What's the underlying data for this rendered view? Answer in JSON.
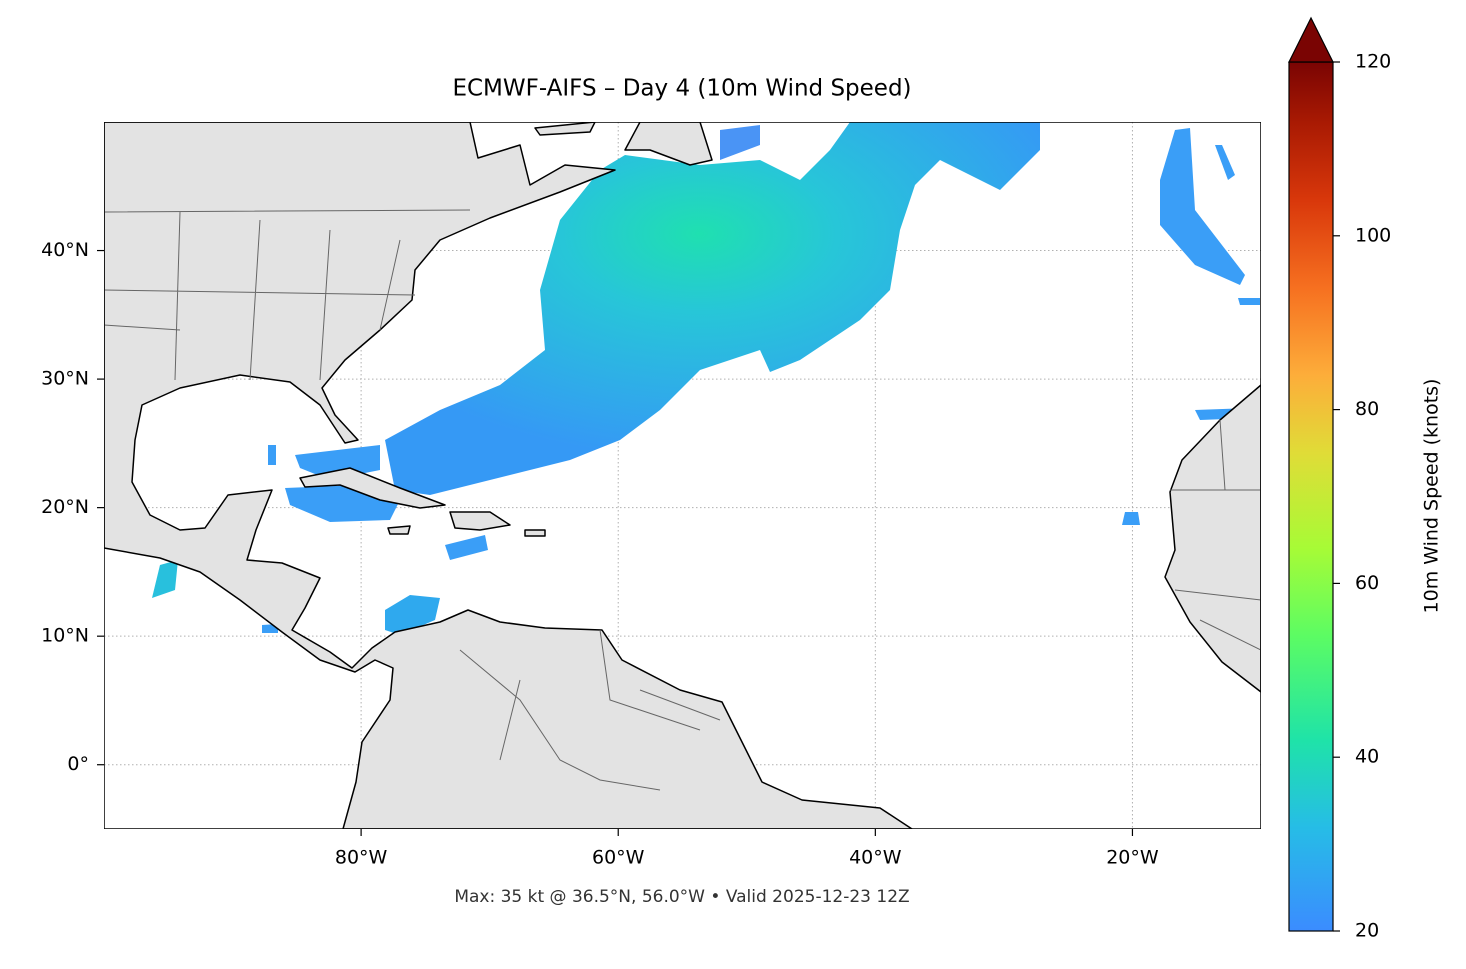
{
  "chart_data": {
    "type": "map",
    "title": "ECMWF-AIFS – Day 4 (10m Wind Speed)",
    "footnote": "Max: 35 kt @ 36.5°N, 56.0°W • Valid 2025-12-23 12Z",
    "xlim": [
      -100,
      -10
    ],
    "ylim": [
      -5,
      50
    ],
    "xticks": [
      {
        "value": -80,
        "label": "80°W"
      },
      {
        "value": -60,
        "label": "60°W"
      },
      {
        "value": -40,
        "label": "40°W"
      },
      {
        "value": -20,
        "label": "20°W"
      }
    ],
    "yticks": [
      {
        "value": 0,
        "label": "0°"
      },
      {
        "value": 10,
        "label": "10°N"
      },
      {
        "value": 20,
        "label": "20°N"
      },
      {
        "value": 30,
        "label": "30°N"
      },
      {
        "value": 40,
        "label": "40°N"
      }
    ],
    "grid": true,
    "colorbar": {
      "label": "10m Wind Speed (knots)",
      "lim": [
        20,
        120
      ],
      "ticks": [
        20,
        40,
        60,
        80,
        100,
        120
      ]
    }
  }
}
